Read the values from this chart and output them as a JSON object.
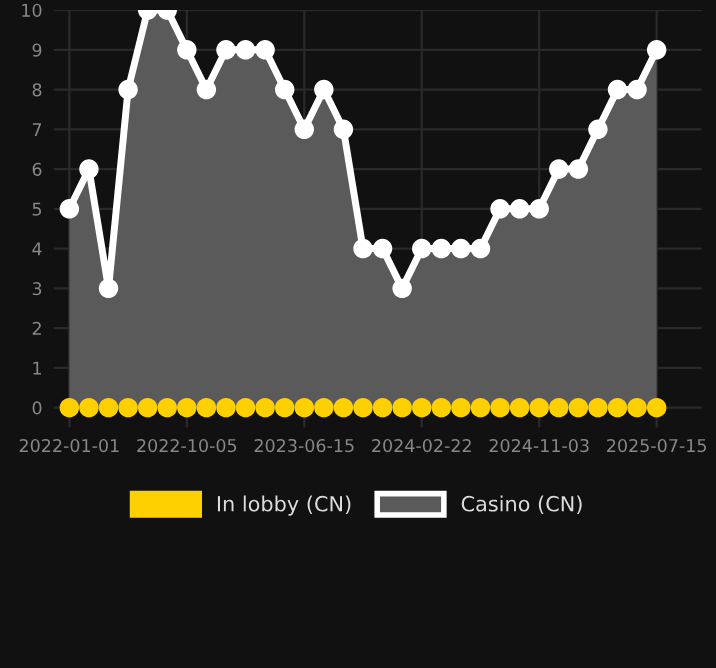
{
  "chart_data": {
    "type": "area",
    "categories": [
      "2022-01-01",
      null,
      null,
      null,
      null,
      null,
      "2022-10-05",
      null,
      null,
      null,
      null,
      null,
      "2023-06-15",
      null,
      null,
      null,
      null,
      null,
      "2024-02-22",
      null,
      null,
      null,
      null,
      null,
      "2024-11-03",
      null,
      null,
      null,
      null,
      null,
      "2025-07-15"
    ],
    "series": [
      {
        "name": "In lobby (CN)",
        "type": "scatter",
        "color": "#ffd000",
        "values": [
          0,
          0,
          0,
          0,
          0,
          0,
          0,
          0,
          0,
          0,
          0,
          0,
          0,
          0,
          0,
          0,
          0,
          0,
          0,
          0,
          0,
          0,
          0,
          0,
          0,
          0,
          0,
          0,
          0,
          0,
          0
        ]
      },
      {
        "name": "Casino (CN)",
        "color": "#ffffff",
        "values": [
          5,
          6,
          3,
          8,
          10,
          10,
          9,
          8,
          9,
          9,
          9,
          8,
          7,
          8,
          7,
          4,
          4,
          3,
          4,
          4,
          4,
          4,
          5,
          5,
          5,
          6,
          6,
          7,
          8,
          8,
          9
        ]
      }
    ],
    "ylim": [
      -0.5,
      10
    ],
    "yticks": [
      0,
      1,
      2,
      3,
      4,
      5,
      6,
      7,
      8,
      9,
      10
    ],
    "grid": true,
    "legend": "bottom",
    "marker": "circle",
    "line_style": "solid"
  }
}
